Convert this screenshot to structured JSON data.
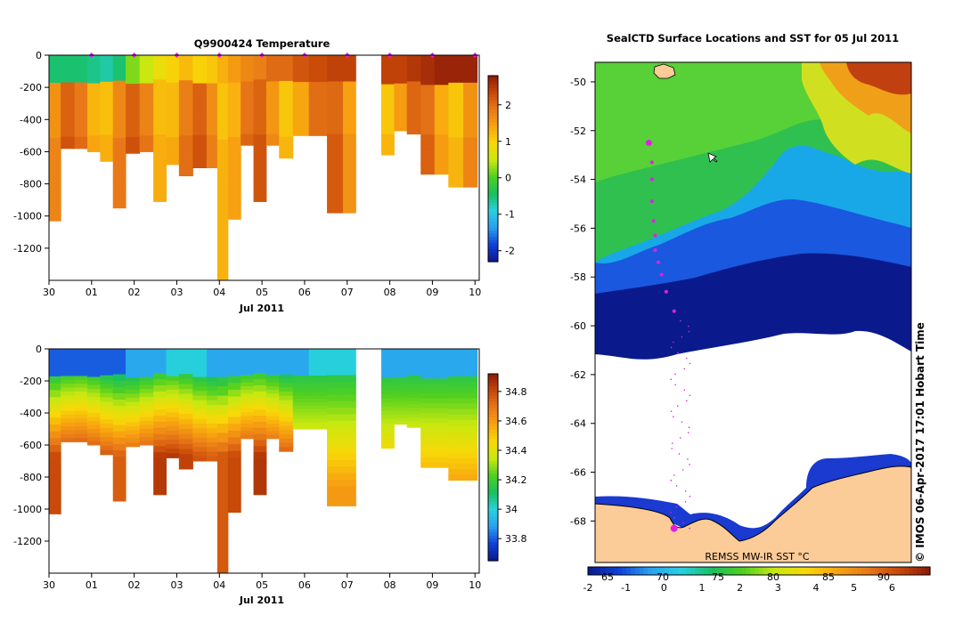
{
  "colors": {
    "temp_scale": [
      "#0a1a8c",
      "#1040d8",
      "#2aa0f0",
      "#28d0e0",
      "#18c060",
      "#50d020",
      "#c8e810",
      "#f8d808",
      "#f8a410",
      "#e87818",
      "#c84808",
      "#8c1a08"
    ],
    "sal_scale": [
      "#0a1a8c",
      "#1040d8",
      "#2aa0f0",
      "#28d0e0",
      "#18c060",
      "#50d020",
      "#c8e810",
      "#f8d808",
      "#f8a410",
      "#e87818",
      "#c84808",
      "#8c1a08"
    ],
    "land": "#fbcb98",
    "track": "#e020e0",
    "frame": "#000000"
  },
  "chart_data": [
    {
      "type": "heatmap",
      "title": "Q9900424  Temperature",
      "xlabel": "Jul 2011",
      "ylabel": "",
      "x_ticks": [
        "30",
        "01",
        "02",
        "03",
        "04",
        "05",
        "06",
        "07",
        "08",
        "09",
        "10"
      ],
      "x_range_days": [
        0,
        10.1
      ],
      "y_ticks": [
        "0",
        "-200",
        "-400",
        "-600",
        "-800",
        "-1000",
        "-1200"
      ],
      "ylim": [
        -1400,
        0
      ],
      "colorbar_ticks": [
        "2",
        "1",
        "0",
        "-1",
        "-2"
      ],
      "colorbar_range": [
        -2.3,
        2.8
      ],
      "profile_markers_days": [
        1.0,
        2.0,
        3.0,
        4.0,
        5.0,
        6.0,
        7.0,
        8.0,
        9.0,
        10.0
      ],
      "profiles": [
        {
          "t": 0.1,
          "depth": -1030,
          "surface": -0.5
        },
        {
          "t": 0.45,
          "depth": -580,
          "surface": -0.5
        },
        {
          "t": 0.75,
          "depth": -580,
          "surface": -0.5
        },
        {
          "t": 1.05,
          "depth": -600,
          "surface": -0.6
        },
        {
          "t": 1.35,
          "depth": -660,
          "surface": -0.7
        },
        {
          "t": 1.65,
          "depth": -950,
          "surface": -0.5
        },
        {
          "t": 1.95,
          "depth": -610,
          "surface": 0.2
        },
        {
          "t": 2.3,
          "depth": -600,
          "surface": 0.5
        },
        {
          "t": 2.6,
          "depth": -910,
          "surface": 0.8
        },
        {
          "t": 2.9,
          "depth": -680,
          "surface": 1.0
        },
        {
          "t": 3.2,
          "depth": -750,
          "surface": 1.2
        },
        {
          "t": 3.55,
          "depth": -700,
          "surface": 1.0
        },
        {
          "t": 3.85,
          "depth": -700,
          "surface": 1.1
        },
        {
          "t": 4.05,
          "depth": -1400,
          "surface": 1.3
        },
        {
          "t": 4.35,
          "depth": -1020,
          "surface": 1.5
        },
        {
          "t": 4.65,
          "depth": -560,
          "surface": 1.7
        },
        {
          "t": 4.95,
          "depth": -910,
          "surface": 1.8
        },
        {
          "t": 5.25,
          "depth": -560,
          "surface": 2.0
        },
        {
          "t": 5.55,
          "depth": -640,
          "surface": 2.0
        },
        {
          "t": 5.9,
          "depth": -500,
          "surface": 2.2
        },
        {
          "t": 6.3,
          "depth": -500,
          "surface": 2.3
        },
        {
          "t": 6.75,
          "depth": -980,
          "surface": 2.4
        },
        {
          "t": 7.05,
          "depth": -980,
          "surface": 2.4
        },
        {
          "t": 7.95,
          "depth": -620,
          "surface": 2.4
        },
        {
          "t": 8.25,
          "depth": -470,
          "surface": 2.4
        },
        {
          "t": 8.55,
          "depth": -490,
          "surface": 2.5
        },
        {
          "t": 8.9,
          "depth": -740,
          "surface": 2.6
        },
        {
          "t": 9.2,
          "depth": -740,
          "surface": 2.7
        },
        {
          "t": 9.55,
          "depth": -820,
          "surface": 2.7
        },
        {
          "t": 9.9,
          "depth": -820,
          "surface": 2.7
        }
      ]
    },
    {
      "type": "heatmap",
      "title": "",
      "xlabel": "Jul 2011",
      "ylabel": "",
      "x_ticks": [
        "30",
        "01",
        "02",
        "03",
        "04",
        "05",
        "06",
        "07",
        "08",
        "09",
        "10"
      ],
      "x_range_days": [
        0,
        10.1
      ],
      "y_ticks": [
        "0",
        "-200",
        "-400",
        "-600",
        "-800",
        "-1000",
        "-1200"
      ],
      "ylim": [
        -1400,
        0
      ],
      "colorbar_ticks": [
        "34.8",
        "34.6",
        "34.4",
        "34.2",
        "34",
        "33.8"
      ],
      "colorbar_range": [
        33.65,
        34.92
      ],
      "profiles": [
        {
          "t": 0.1,
          "depth": -1030,
          "surface": 33.8
        },
        {
          "t": 0.45,
          "depth": -580,
          "surface": 33.8
        },
        {
          "t": 0.75,
          "depth": -580,
          "surface": 33.8
        },
        {
          "t": 1.05,
          "depth": -600,
          "surface": 33.8
        },
        {
          "t": 1.35,
          "depth": -660,
          "surface": 33.8
        },
        {
          "t": 1.65,
          "depth": -950,
          "surface": 33.8
        },
        {
          "t": 1.95,
          "depth": -610,
          "surface": 33.9
        },
        {
          "t": 2.3,
          "depth": -600,
          "surface": 33.9
        },
        {
          "t": 2.6,
          "depth": -910,
          "surface": 33.9
        },
        {
          "t": 2.9,
          "depth": -680,
          "surface": 34.0
        },
        {
          "t": 3.2,
          "depth": -750,
          "surface": 34.0
        },
        {
          "t": 3.55,
          "depth": -700,
          "surface": 34.0
        },
        {
          "t": 3.85,
          "depth": -700,
          "surface": 33.9
        },
        {
          "t": 4.05,
          "depth": -1400,
          "surface": 33.9
        },
        {
          "t": 4.35,
          "depth": -1020,
          "surface": 33.9
        },
        {
          "t": 4.65,
          "depth": -560,
          "surface": 33.9
        },
        {
          "t": 4.95,
          "depth": -910,
          "surface": 33.9
        },
        {
          "t": 5.25,
          "depth": -560,
          "surface": 33.9
        },
        {
          "t": 5.55,
          "depth": -640,
          "surface": 33.9
        },
        {
          "t": 5.9,
          "depth": -500,
          "surface": 33.9
        },
        {
          "t": 6.3,
          "depth": -500,
          "surface": 34.0
        },
        {
          "t": 6.75,
          "depth": -980,
          "surface": 34.0
        },
        {
          "t": 7.05,
          "depth": -980,
          "surface": 34.0
        },
        {
          "t": 7.95,
          "depth": -620,
          "surface": 33.9
        },
        {
          "t": 8.25,
          "depth": -470,
          "surface": 33.9
        },
        {
          "t": 8.55,
          "depth": -490,
          "surface": 33.9
        },
        {
          "t": 8.9,
          "depth": -740,
          "surface": 33.9
        },
        {
          "t": 9.2,
          "depth": -740,
          "surface": 33.9
        },
        {
          "t": 9.55,
          "depth": -820,
          "surface": 33.9
        },
        {
          "t": 9.9,
          "depth": -820,
          "surface": 33.9
        }
      ]
    },
    {
      "type": "heatmap",
      "title": "SealCTD Surface Locations and SST for 05 Jul 2011",
      "xlabel": "",
      "ylabel": "",
      "y_ticks": [
        "-50",
        "-52",
        "-54",
        "-56",
        "-58",
        "-60",
        "-62",
        "-64",
        "-66",
        "-68"
      ],
      "ylim": [
        -69.7,
        -49.2
      ],
      "x_ticks": [
        "65",
        "70",
        "75",
        "80",
        "85",
        "90"
      ],
      "colorbar_ticks": [
        "-2",
        "-1",
        "0",
        "1",
        "2",
        "3",
        "4",
        "5",
        "6"
      ],
      "colorbar_range": [
        -2,
        7
      ],
      "product_label": "REMSS MW-IR SST °C",
      "credit": "© IMOS 06-Apr-2017 17:01 Hobart Time",
      "track_points": [
        {
          "x": 0.17,
          "y": -52.5
        },
        {
          "x": 0.18,
          "y": -53.3
        },
        {
          "x": 0.18,
          "y": -54.0
        },
        {
          "x": 0.18,
          "y": -54.9
        },
        {
          "x": 0.185,
          "y": -55.7
        },
        {
          "x": 0.19,
          "y": -56.3
        },
        {
          "x": 0.19,
          "y": -56.9
        },
        {
          "x": 0.2,
          "y": -57.4
        },
        {
          "x": 0.21,
          "y": -57.9
        },
        {
          "x": 0.225,
          "y": -58.6
        },
        {
          "x": 0.25,
          "y": -59.4
        }
      ]
    }
  ]
}
